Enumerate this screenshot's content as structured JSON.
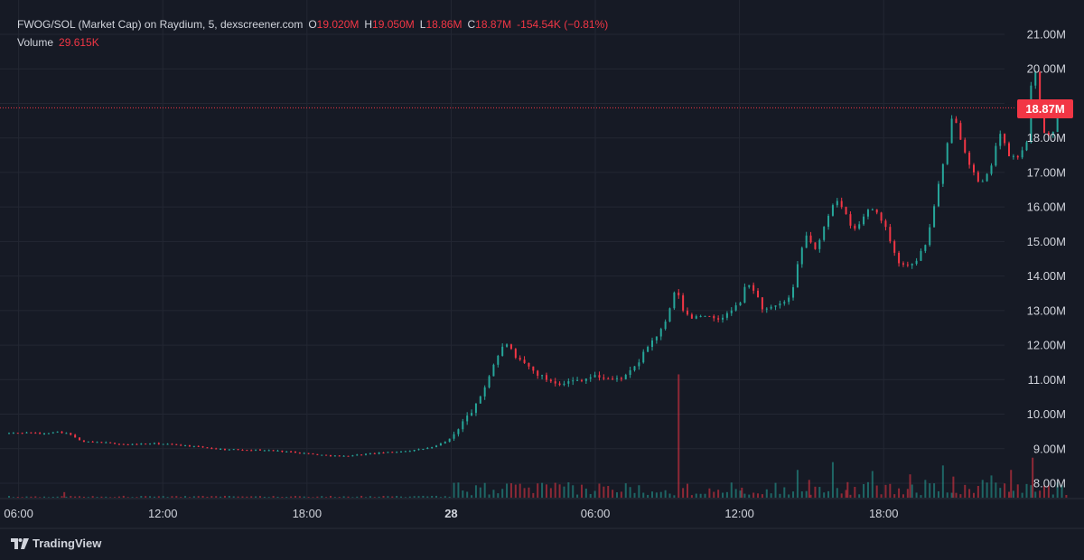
{
  "header": {
    "symbol_line": "FWOG/SOL (Market Cap) on Raydium, 5, dexscreener.com",
    "o_label": "O",
    "o_value": "19.020M",
    "h_label": "H",
    "h_value": "19.050M",
    "l_label": "L",
    "l_value": "18.86M",
    "c_label": "C",
    "c_value": "18.87M",
    "change": "-154.54K (−0.81%)",
    "volume_label": "Volume",
    "volume_value": "29.615K"
  },
  "last_price_label": "18.87M",
  "branding": {
    "logo_text": "TradingView",
    "logo_icon": "tradingview-icon"
  },
  "colors": {
    "up": "#26a69a",
    "down": "#f23645",
    "background": "#161a25",
    "grid": "#232733",
    "text": "#d1d4dc"
  },
  "chart_data": {
    "type": "candlestick",
    "title": "FWOG/SOL (Market Cap) on Raydium, 5, dexscreener.com",
    "y_unit": "M",
    "ylim": [
      7.6,
      21.5
    ],
    "y_ticks": [
      "21.00M",
      "20.00M",
      "19.00M",
      "18.00M",
      "17.00M",
      "16.00M",
      "15.00M",
      "14.00M",
      "13.00M",
      "12.00M",
      "11.00M",
      "10.00M",
      "9.00M",
      "8.00M"
    ],
    "y_tick_values": [
      21,
      20,
      19,
      18,
      17,
      16,
      15,
      14,
      13,
      12,
      11,
      10,
      9,
      8
    ],
    "x_ticks": [
      "06:00",
      "12:00",
      "18:00",
      "28",
      "06:00",
      "12:00",
      "18:00"
    ],
    "x_tick_hours": [
      6,
      12,
      18,
      24,
      30,
      36,
      42
    ],
    "x_range_hours": [
      5.6,
      45.4
    ],
    "grid": true,
    "last_price": 18.87,
    "price_path": [
      [
        5.6,
        9.45
      ],
      [
        6.5,
        9.47
      ],
      [
        7.0,
        9.42
      ],
      [
        7.5,
        9.5
      ],
      [
        8.0,
        9.45
      ],
      [
        8.3,
        9.35
      ],
      [
        8.6,
        9.2
      ],
      [
        9.5,
        9.18
      ],
      [
        10.5,
        9.12
      ],
      [
        11.5,
        9.15
      ],
      [
        12.5,
        9.12
      ],
      [
        13.5,
        9.05
      ],
      [
        14.5,
        8.98
      ],
      [
        15.5,
        8.97
      ],
      [
        16.5,
        8.95
      ],
      [
        17.5,
        8.9
      ],
      [
        18.5,
        8.82
      ],
      [
        19.5,
        8.78
      ],
      [
        20.5,
        8.85
      ],
      [
        21.5,
        8.9
      ],
      [
        22.5,
        8.96
      ],
      [
        23.3,
        9.05
      ],
      [
        24.0,
        9.3
      ],
      [
        24.5,
        9.8
      ],
      [
        25.0,
        10.2
      ],
      [
        25.4,
        10.8
      ],
      [
        25.8,
        11.5
      ],
      [
        26.1,
        11.9
      ],
      [
        26.4,
        12.1
      ],
      [
        26.6,
        11.6
      ],
      [
        27.0,
        11.5
      ],
      [
        27.5,
        11.2
      ],
      [
        28.0,
        11.0
      ],
      [
        28.5,
        10.9
      ],
      [
        29.0,
        10.95
      ],
      [
        30.0,
        11.1
      ],
      [
        30.8,
        11.0
      ],
      [
        31.3,
        11.1
      ],
      [
        31.8,
        11.5
      ],
      [
        32.2,
        12.0
      ],
      [
        32.6,
        12.3
      ],
      [
        32.9,
        12.6
      ],
      [
        33.2,
        13.3
      ],
      [
        33.4,
        13.7
      ],
      [
        33.6,
        13.0
      ],
      [
        34.0,
        12.8
      ],
      [
        34.5,
        12.9
      ],
      [
        35.0,
        12.7
      ],
      [
        35.5,
        12.9
      ],
      [
        36.0,
        13.2
      ],
      [
        36.3,
        13.8
      ],
      [
        36.6,
        13.6
      ],
      [
        37.0,
        13.0
      ],
      [
        37.5,
        13.1
      ],
      [
        38.0,
        13.3
      ],
      [
        38.2,
        13.5
      ],
      [
        38.5,
        14.6
      ],
      [
        38.8,
        15.2
      ],
      [
        39.2,
        14.7
      ],
      [
        39.6,
        15.6
      ],
      [
        40.0,
        16.3
      ],
      [
        40.4,
        15.8
      ],
      [
        40.7,
        15.3
      ],
      [
        41.0,
        15.5
      ],
      [
        41.4,
        16.0
      ],
      [
        41.8,
        15.8
      ],
      [
        42.2,
        15.2
      ],
      [
        42.6,
        14.4
      ],
      [
        43.0,
        14.3
      ],
      [
        43.4,
        14.5
      ],
      [
        43.8,
        15.0
      ],
      [
        44.2,
        16.4
      ],
      [
        44.6,
        17.6
      ],
      [
        44.9,
        18.8
      ],
      [
        45.2,
        18.0
      ],
      [
        45.6,
        17.2
      ],
      [
        46.0,
        16.6
      ],
      [
        46.4,
        17.0
      ],
      [
        46.8,
        18.2
      ],
      [
        47.2,
        17.5
      ],
      [
        47.6,
        17.4
      ],
      [
        48.0,
        18.0
      ],
      [
        48.2,
        20.2
      ],
      [
        48.4,
        19.6
      ],
      [
        48.7,
        18.1
      ],
      [
        49.0,
        18.0
      ],
      [
        49.3,
        18.9
      ],
      [
        49.6,
        18.87
      ]
    ],
    "volume_spikes": [
      [
        7.9,
        0.5
      ],
      [
        33.5,
        11.1
      ],
      [
        36.1,
        0.9
      ],
      [
        38.4,
        2.5
      ],
      [
        38.9,
        1.6
      ],
      [
        39.9,
        3.2
      ],
      [
        40.5,
        1.4
      ],
      [
        41.5,
        2.4
      ],
      [
        43.1,
        2.1
      ],
      [
        43.7,
        1.6
      ],
      [
        44.5,
        2.9
      ],
      [
        44.9,
        1.9
      ],
      [
        46.1,
        1.6
      ],
      [
        46.5,
        2.0
      ],
      [
        47.3,
        2.5
      ],
      [
        48.2,
        3.6
      ],
      [
        48.9,
        1.1
      ]
    ]
  }
}
